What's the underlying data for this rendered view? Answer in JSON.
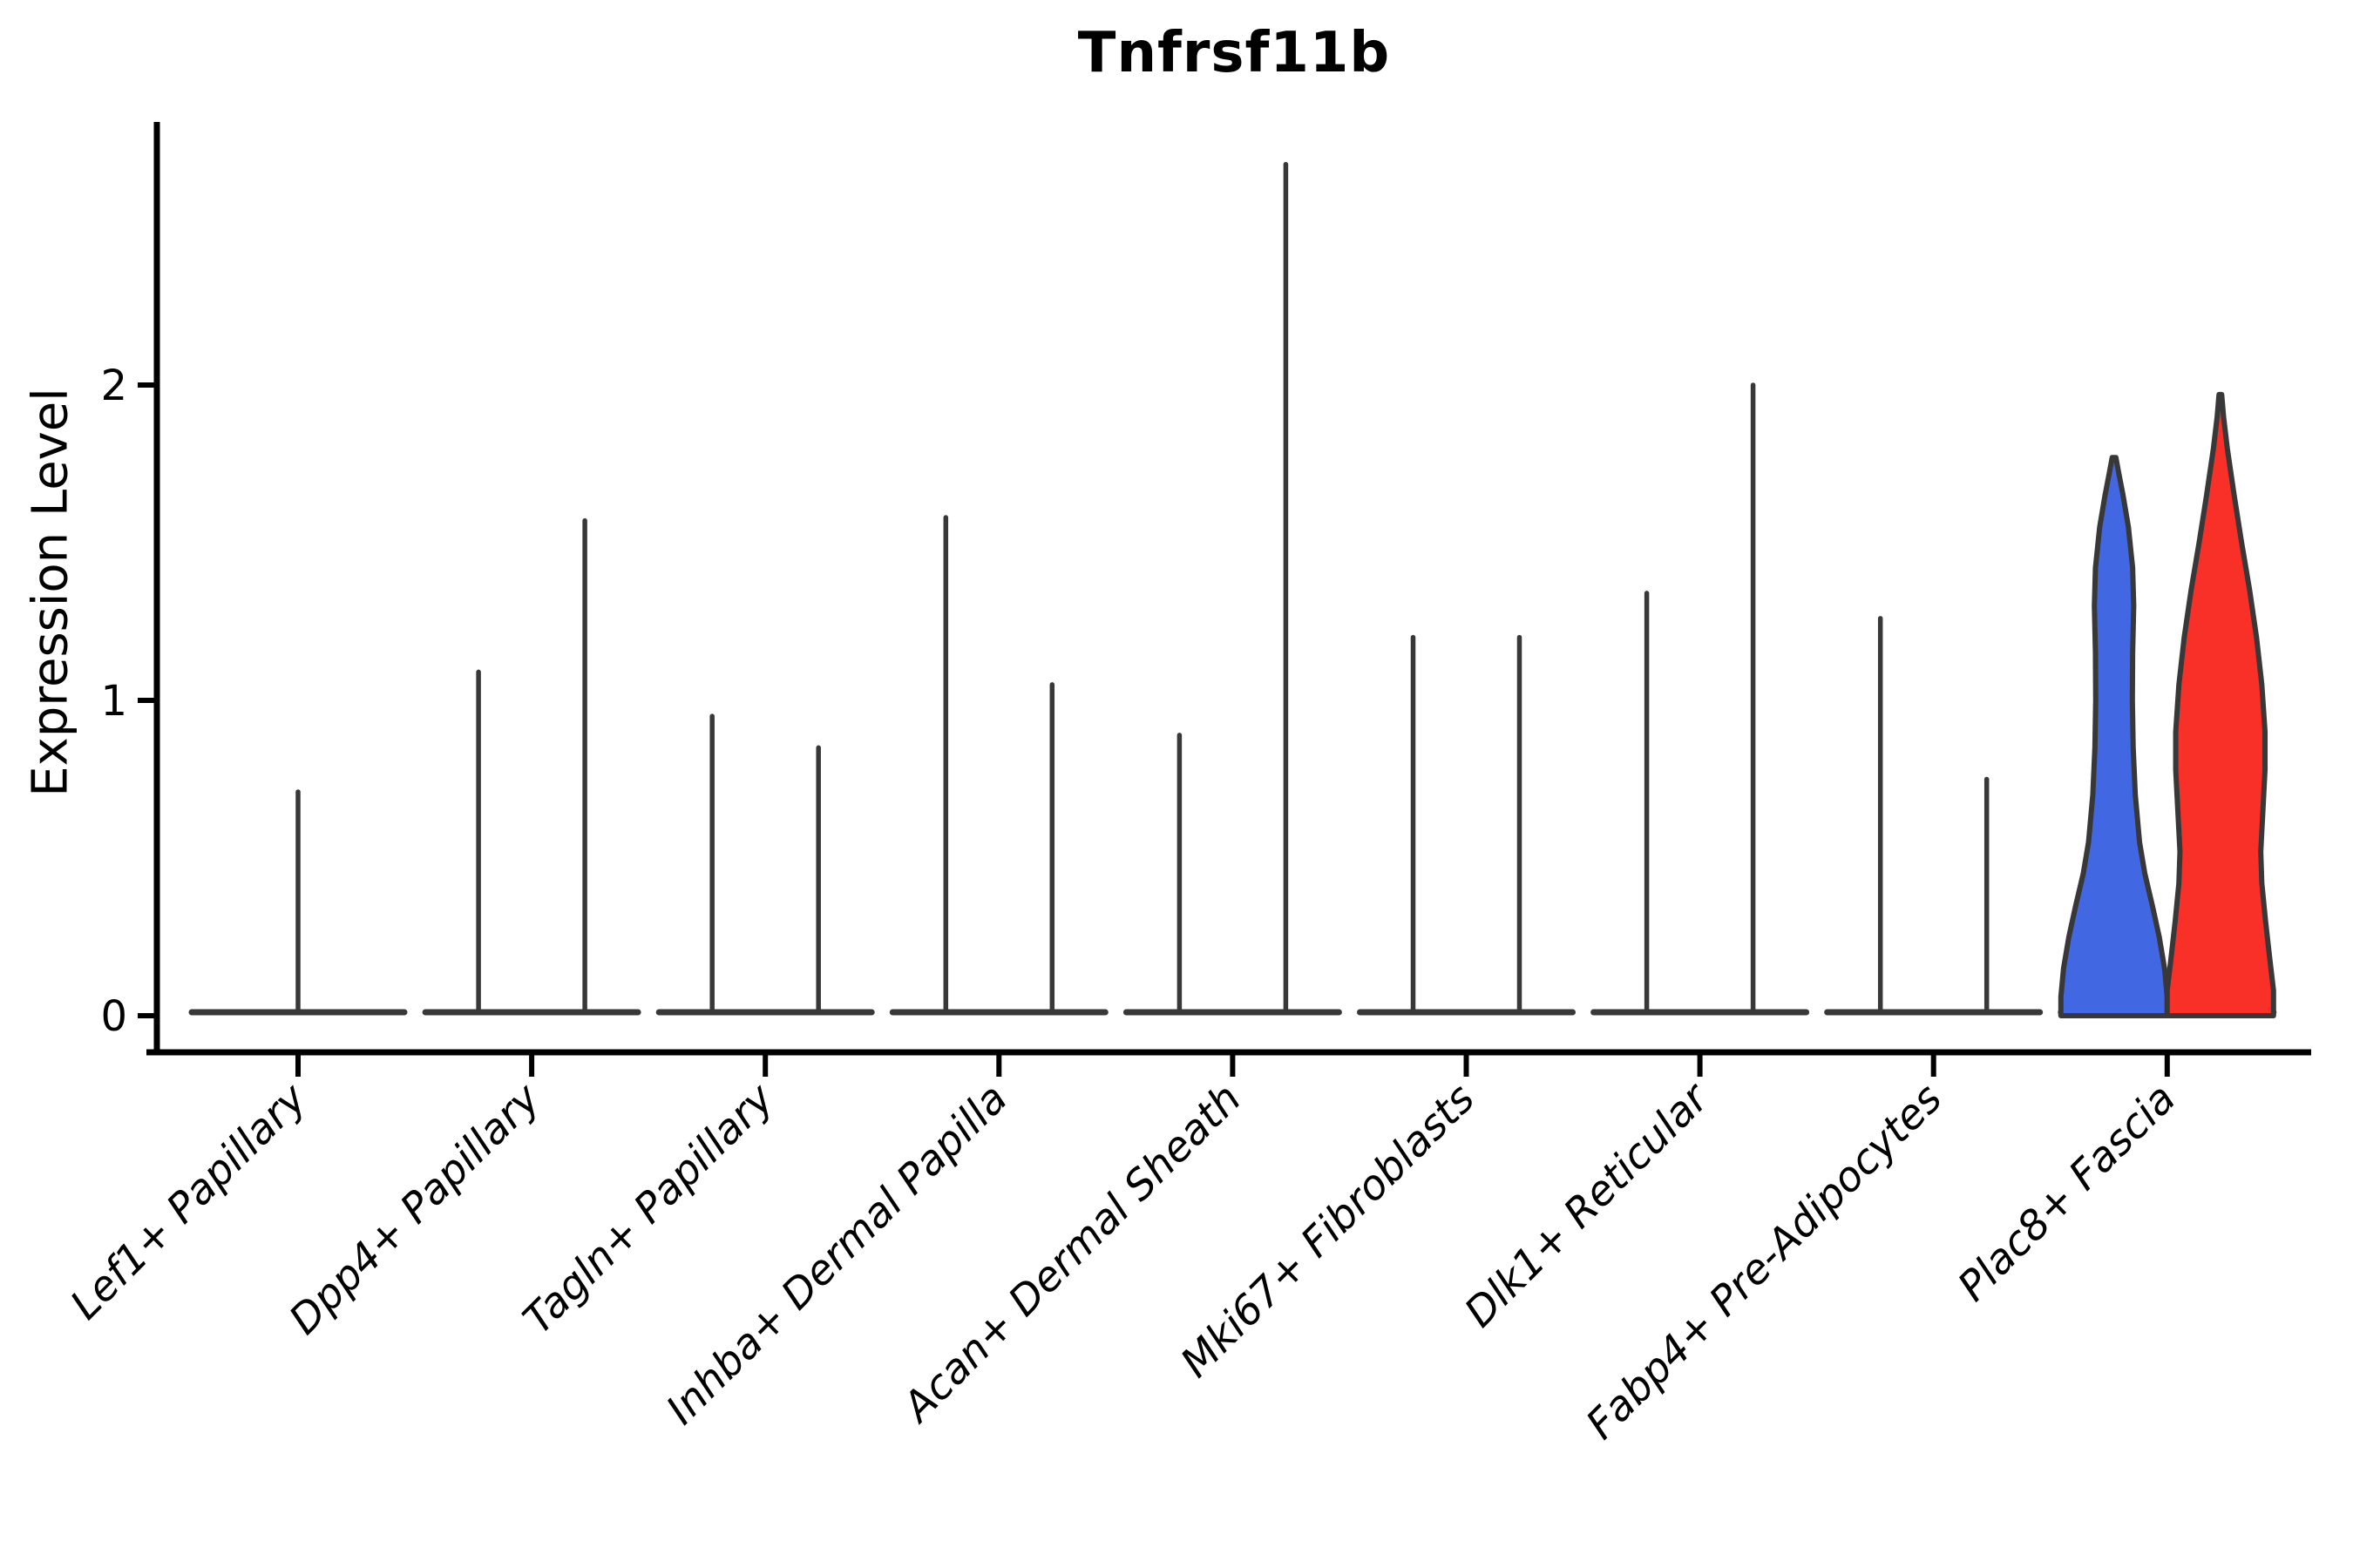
{
  "chart_data": {
    "type": "violin",
    "title": "Tnfrsf11b",
    "ylabel": "Expression Level",
    "xlabel": "",
    "yticks": [
      0,
      1,
      2
    ],
    "ylim": [
      0,
      2.84
    ],
    "grid": false,
    "legend": "none",
    "axis_color": "#000000",
    "violin_outline_color": "#383838",
    "blue_fill": "#4167E2",
    "red_fill": "#F93028",
    "categories": [
      {
        "label": "Lef1+ Papillary",
        "violins": [
          {
            "group": "combined",
            "position": "center",
            "shape": "spike",
            "max_expression": 0.71
          }
        ]
      },
      {
        "label": "Dpp4+ Papillary",
        "violins": [
          {
            "group": "blue",
            "position": "left",
            "shape": "spike",
            "max_expression": 1.09
          },
          {
            "group": "red",
            "position": "right",
            "shape": "spike",
            "max_expression": 1.57
          }
        ]
      },
      {
        "label": "Tagln+ Papillary",
        "violins": [
          {
            "group": "blue",
            "position": "left",
            "shape": "spike",
            "max_expression": 0.95
          },
          {
            "group": "red",
            "position": "right",
            "shape": "spike",
            "max_expression": 0.85
          }
        ]
      },
      {
        "label": "Inhba+ Dermal Papilla",
        "violins": [
          {
            "group": "blue",
            "position": "left",
            "shape": "spike",
            "max_expression": 1.58
          },
          {
            "group": "red",
            "position": "right",
            "shape": "spike",
            "max_expression": 1.05
          }
        ]
      },
      {
        "label": "Acan+ Dermal Sheath",
        "violins": [
          {
            "group": "blue",
            "position": "left",
            "shape": "spike",
            "max_expression": 0.89
          },
          {
            "group": "red",
            "position": "right",
            "shape": "spike",
            "max_expression": 2.7
          }
        ]
      },
      {
        "label": "Mki67+ Fibroblasts",
        "violins": [
          {
            "group": "blue",
            "position": "left",
            "shape": "spike",
            "max_expression": 1.2
          },
          {
            "group": "red",
            "position": "right",
            "shape": "spike",
            "max_expression": 1.2
          }
        ]
      },
      {
        "label": "Dlk1+ Reticular",
        "violins": [
          {
            "group": "blue",
            "position": "left",
            "shape": "spike",
            "max_expression": 1.34
          },
          {
            "group": "red",
            "position": "right",
            "shape": "spike",
            "max_expression": 2.0
          }
        ]
      },
      {
        "label": "Fabp4+ Pre-Adipocytes",
        "violins": [
          {
            "group": "blue",
            "position": "left",
            "shape": "spike",
            "max_expression": 1.26
          },
          {
            "group": "red",
            "position": "right",
            "shape": "spike",
            "max_expression": 0.75
          }
        ]
      },
      {
        "label": "Plac8+ Fascia",
        "violins": [
          {
            "group": "blue",
            "position": "left",
            "shape": "violin",
            "fill": "#4167E2",
            "max_expression": 1.77,
            "width_profile": [
              [
                0.0,
                1.0
              ],
              [
                0.06,
                1.0
              ],
              [
                0.15,
                0.95
              ],
              [
                0.25,
                0.85
              ],
              [
                0.35,
                0.72
              ],
              [
                0.45,
                0.58
              ],
              [
                0.55,
                0.48
              ],
              [
                0.7,
                0.4
              ],
              [
                0.85,
                0.36
              ],
              [
                1.0,
                0.345
              ],
              [
                1.15,
                0.35
              ],
              [
                1.3,
                0.37
              ],
              [
                1.42,
                0.35
              ],
              [
                1.55,
                0.27
              ],
              [
                1.65,
                0.17
              ],
              [
                1.72,
                0.09
              ],
              [
                1.77,
                0.035
              ]
            ]
          },
          {
            "group": "red",
            "position": "right",
            "shape": "violin",
            "fill": "#F93028",
            "max_expression": 1.97,
            "width_profile": [
              [
                0.0,
                1.0
              ],
              [
                0.08,
                1.0
              ],
              [
                0.18,
                0.93
              ],
              [
                0.3,
                0.85
              ],
              [
                0.42,
                0.78
              ],
              [
                0.52,
                0.76
              ],
              [
                0.65,
                0.8
              ],
              [
                0.78,
                0.84
              ],
              [
                0.9,
                0.84
              ],
              [
                1.05,
                0.78
              ],
              [
                1.2,
                0.68
              ],
              [
                1.35,
                0.55
              ],
              [
                1.5,
                0.4
              ],
              [
                1.65,
                0.26
              ],
              [
                1.8,
                0.13
              ],
              [
                1.9,
                0.06
              ],
              [
                1.97,
                0.025
              ]
            ]
          }
        ]
      }
    ]
  }
}
